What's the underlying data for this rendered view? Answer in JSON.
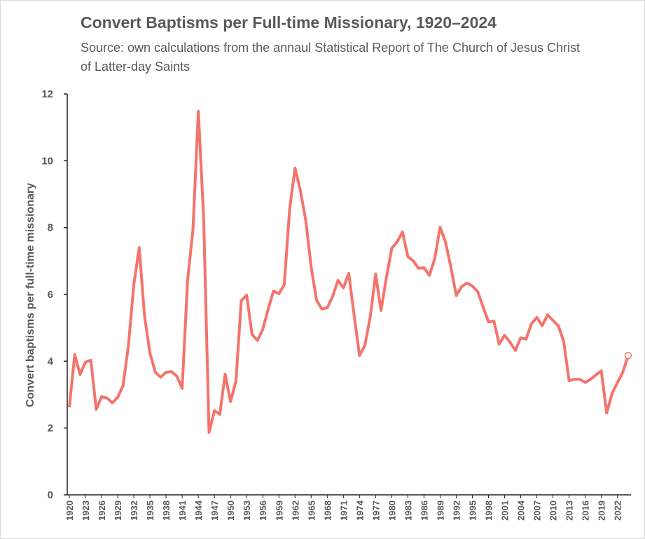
{
  "chart_data": {
    "type": "line",
    "title": "Convert Baptisms per Full-time Missionary, 1920–2024",
    "subtitle": "Source: own calculations from the annaul Statistical Report of The Church of Jesus Christ of Latter-day Saints",
    "y_label": "Convert baptisms per full-time missionary",
    "x": [
      1920,
      1921,
      1922,
      1923,
      1924,
      1925,
      1926,
      1927,
      1928,
      1929,
      1930,
      1931,
      1932,
      1933,
      1934,
      1935,
      1936,
      1937,
      1938,
      1939,
      1940,
      1941,
      1942,
      1943,
      1944,
      1945,
      1946,
      1947,
      1948,
      1949,
      1950,
      1951,
      1952,
      1953,
      1954,
      1955,
      1956,
      1957,
      1958,
      1959,
      1960,
      1961,
      1962,
      1963,
      1964,
      1965,
      1966,
      1967,
      1968,
      1969,
      1970,
      1971,
      1972,
      1973,
      1974,
      1975,
      1976,
      1977,
      1978,
      1979,
      1980,
      1981,
      1982,
      1983,
      1984,
      1985,
      1986,
      1987,
      1988,
      1989,
      1990,
      1991,
      1992,
      1993,
      1994,
      1995,
      1996,
      1997,
      1998,
      1999,
      2000,
      2001,
      2002,
      2003,
      2004,
      2005,
      2006,
      2007,
      2008,
      2009,
      2010,
      2011,
      2012,
      2013,
      2014,
      2015,
      2016,
      2017,
      2018,
      2019,
      2020,
      2021,
      2022,
      2023,
      2024
    ],
    "values": [
      2.62,
      4.2,
      3.6,
      3.97,
      4.03,
      2.56,
      2.94,
      2.9,
      2.75,
      2.92,
      3.27,
      4.47,
      6.3,
      7.4,
      5.35,
      4.24,
      3.67,
      3.52,
      3.67,
      3.69,
      3.55,
      3.19,
      6.4,
      7.93,
      11.48,
      8.29,
      1.87,
      2.52,
      2.41,
      3.61,
      2.79,
      3.4,
      5.81,
      5.98,
      4.8,
      4.62,
      4.95,
      5.56,
      6.1,
      6.02,
      6.29,
      8.56,
      9.78,
      9.1,
      8.22,
      6.82,
      5.83,
      5.56,
      5.6,
      5.94,
      6.42,
      6.19,
      6.63,
      5.37,
      4.17,
      4.47,
      5.33,
      6.61,
      5.52,
      6.5,
      7.38,
      7.57,
      7.87,
      7.13,
      7.0,
      6.78,
      6.8,
      6.57,
      7.07,
      8.01,
      7.57,
      6.82,
      5.96,
      6.23,
      6.34,
      6.25,
      6.08,
      5.62,
      5.18,
      5.2,
      4.51,
      4.78,
      4.57,
      4.32,
      4.7,
      4.66,
      5.12,
      5.31,
      5.06,
      5.39,
      5.22,
      5.06,
      4.59,
      3.42,
      3.46,
      3.46,
      3.36,
      3.46,
      3.59,
      3.71,
      2.45,
      3.04,
      3.36,
      3.67,
      4.17
    ],
    "color": "#f4736b",
    "xlim": [
      1920,
      2024
    ],
    "xticks": [
      1920,
      1923,
      1926,
      1929,
      1932,
      1935,
      1938,
      1941,
      1944,
      1947,
      1950,
      1953,
      1956,
      1959,
      1962,
      1965,
      1968,
      1971,
      1974,
      1977,
      1980,
      1983,
      1986,
      1989,
      1992,
      1995,
      1998,
      2001,
      2004,
      2007,
      2010,
      2013,
      2016,
      2019,
      2022
    ],
    "ylim": [
      0,
      12
    ],
    "yticks": [
      0,
      2,
      4,
      6,
      8,
      10,
      12
    ],
    "grid": false
  }
}
